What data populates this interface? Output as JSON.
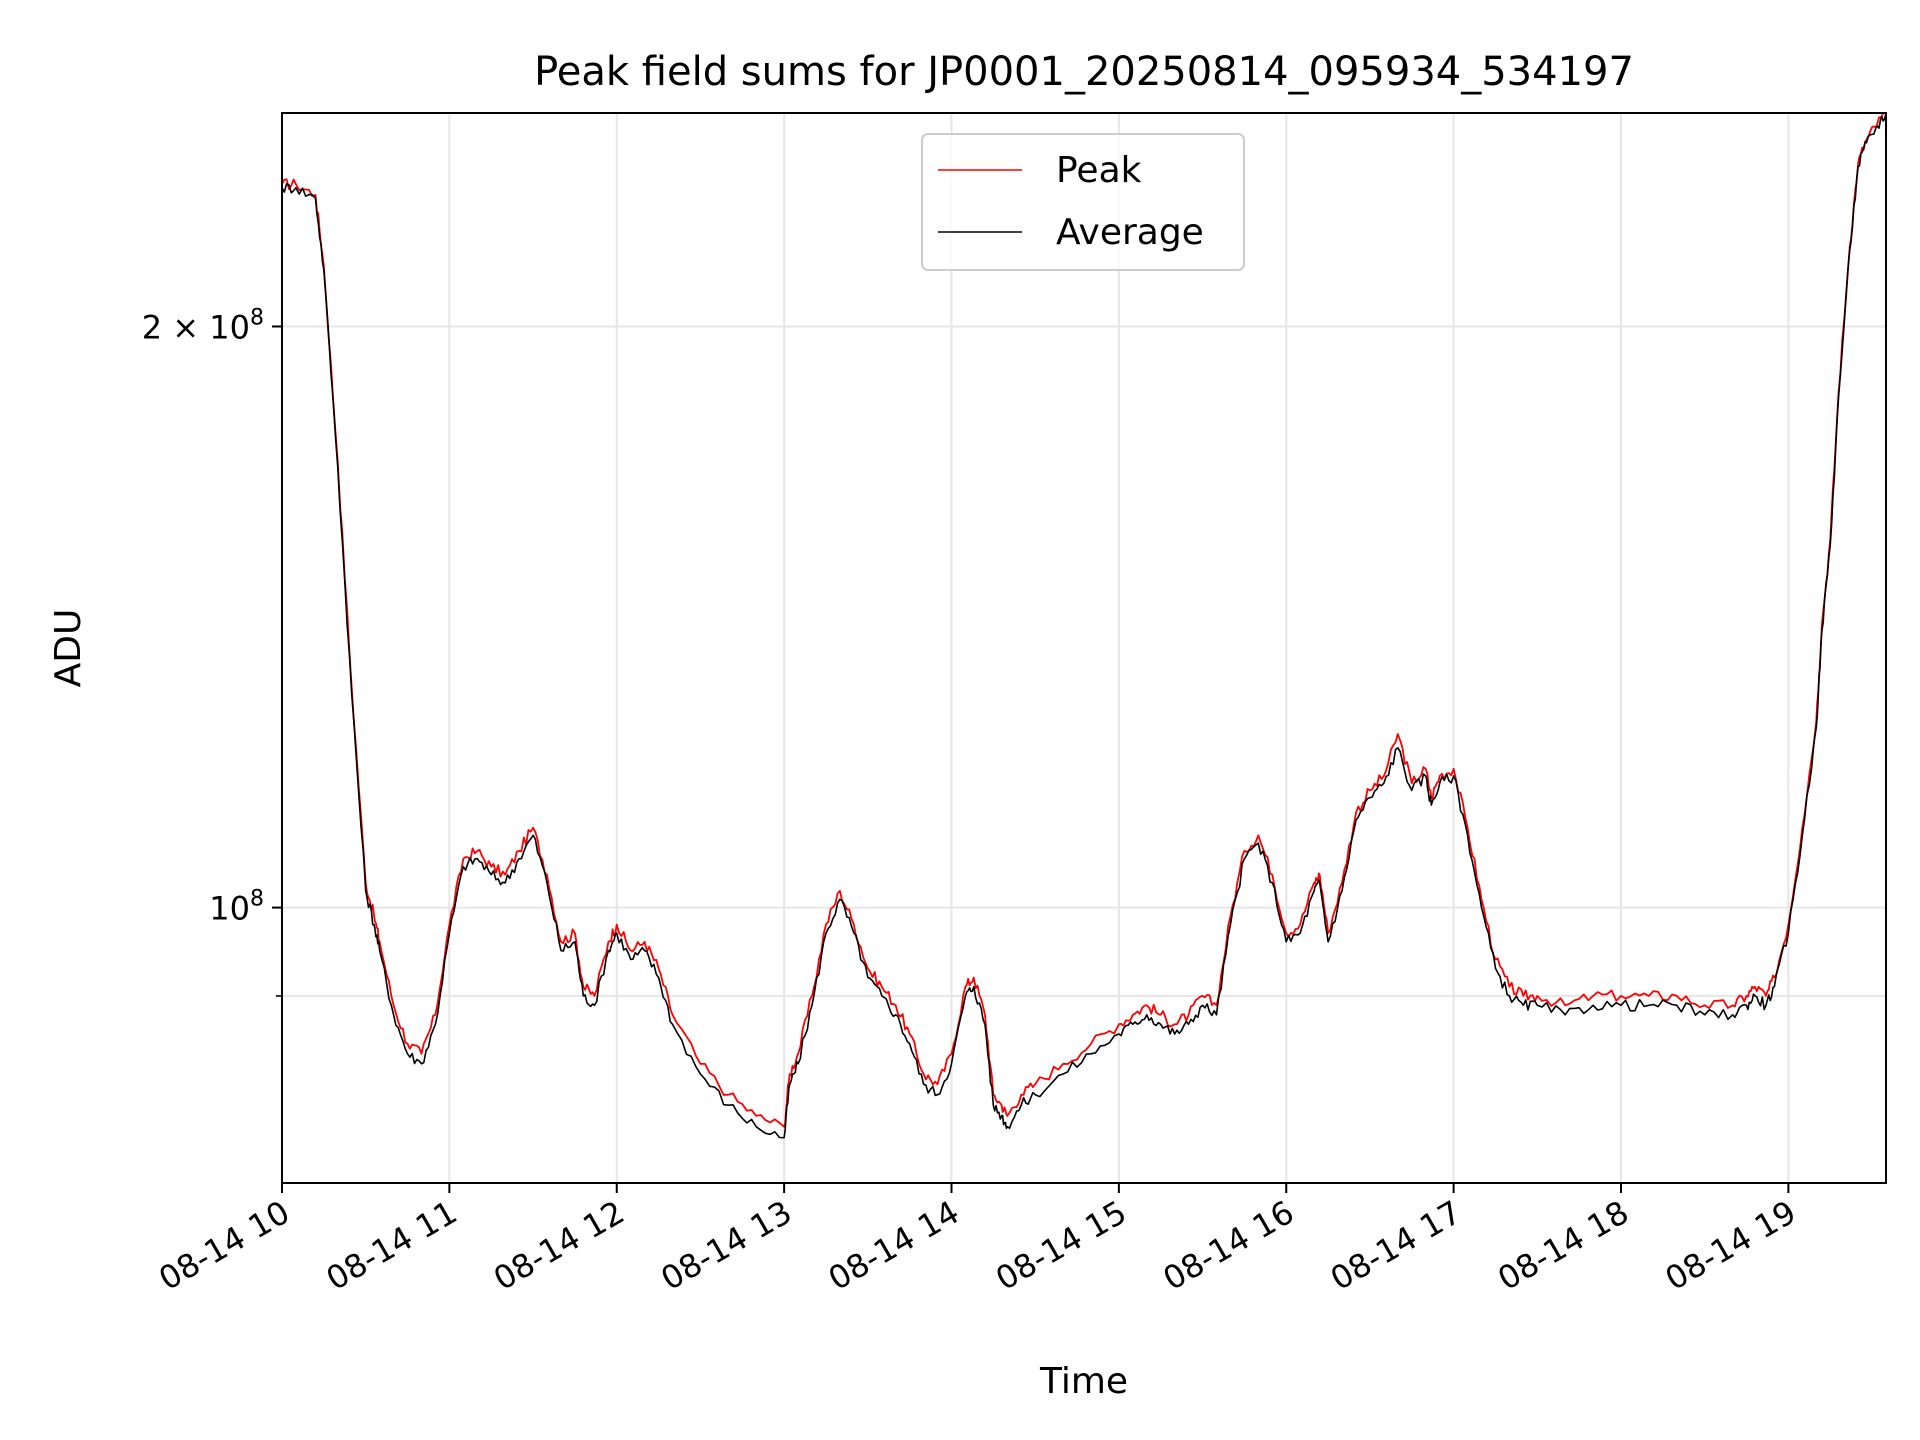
{
  "chart_data": {
    "type": "line",
    "title": "Peak field sums for JP0001_20250814_095934_534197",
    "xlabel": "Time",
    "ylabel": "ADU",
    "yscale": "log",
    "xlim": [
      "08-14 10:00",
      "08-14 19:35"
    ],
    "ylim": [
      72000000,
      258000000
    ],
    "grid": true,
    "legend_position": "upper center",
    "x_ticks": [
      "08-14 10",
      "08-14 11",
      "08-14 12",
      "08-14 13",
      "08-14 14",
      "08-14 15",
      "08-14 16",
      "08-14 17",
      "08-14 18",
      "08-14 19"
    ],
    "y_ticks_major": [
      {
        "value": 100000000,
        "base": "10",
        "exp": "8",
        "mantissa": ""
      },
      {
        "value": 200000000,
        "base": "10",
        "exp": "8",
        "mantissa": "2 × "
      }
    ],
    "y_ticks_minor_unlabeled": [
      90000000
    ],
    "x": [
      "10:00",
      "10:05",
      "10:12",
      "10:15",
      "10:20",
      "10:25",
      "10:30",
      "10:33",
      "10:35",
      "10:40",
      "10:45",
      "10:50",
      "10:55",
      "11:00",
      "11:05",
      "11:10",
      "11:15",
      "11:20",
      "11:25",
      "11:30",
      "11:35",
      "11:40",
      "11:45",
      "11:48",
      "11:52",
      "11:57",
      "12:00",
      "12:05",
      "12:10",
      "12:15",
      "12:20",
      "12:30",
      "12:40",
      "12:50",
      "13:00",
      "13:02",
      "13:05",
      "13:10",
      "13:15",
      "13:20",
      "13:25",
      "13:30",
      "13:35",
      "13:40",
      "13:45",
      "13:50",
      "13:55",
      "14:00",
      "14:05",
      "14:08",
      "14:12",
      "14:15",
      "14:18",
      "14:20",
      "14:25",
      "14:30",
      "14:40",
      "14:50",
      "15:00",
      "15:05",
      "15:10",
      "15:15",
      "15:20",
      "15:25",
      "15:30",
      "15:35",
      "15:40",
      "15:45",
      "15:50",
      "15:55",
      "16:00",
      "16:05",
      "16:10",
      "16:12",
      "16:15",
      "16:20",
      "16:25",
      "16:30",
      "16:35",
      "16:40",
      "16:45",
      "16:50",
      "16:52",
      "16:55",
      "17:00",
      "17:05",
      "17:10",
      "17:15",
      "17:20",
      "17:25",
      "17:30",
      "17:40",
      "17:50",
      "18:00",
      "18:10",
      "18:20",
      "18:30",
      "18:40",
      "18:45",
      "18:48",
      "18:52",
      "18:55",
      "19:00",
      "19:05",
      "19:10",
      "19:12",
      "19:15",
      "19:18",
      "19:22",
      "19:25",
      "19:28",
      "19:32",
      "19:35"
    ],
    "series": [
      {
        "name": "Peak",
        "color": "#ff0000",
        "values": [
          237000000,
          237000000,
          234000000,
          215000000,
          170000000,
          130000000,
          103000000,
          99000000,
          96000000,
          89000000,
          85000000,
          84000000,
          88000000,
          98000000,
          106000000,
          107000000,
          105000000,
          104000000,
          107000000,
          110000000,
          104000000,
          96000000,
          97000000,
          91000000,
          90000000,
          96000000,
          98000000,
          95000000,
          96000000,
          93000000,
          88000000,
          83000000,
          80000000,
          78000000,
          77000000,
          82000000,
          84000000,
          90000000,
          98000000,
          102000000,
          98000000,
          93000000,
          91000000,
          89000000,
          86000000,
          82000000,
          81000000,
          84000000,
          91000000,
          92000000,
          88000000,
          80000000,
          79000000,
          78000000,
          80000000,
          81000000,
          83000000,
          85000000,
          87000000,
          88000000,
          89000000,
          88000000,
          87000000,
          88000000,
          90000000,
          89000000,
          99000000,
          107000000,
          109000000,
          104000000,
          97000000,
          98000000,
          103000000,
          104000000,
          97000000,
          103000000,
          112000000,
          115000000,
          117000000,
          123000000,
          116000000,
          118000000,
          114000000,
          117000000,
          118000000,
          110000000,
          101000000,
          94000000,
          91000000,
          90000000,
          90000000,
          89000000,
          90000000,
          90000000,
          90000000,
          90000000,
          89000000,
          89000000,
          90000000,
          91000000,
          90000000,
          92000000,
          98000000,
          110000000,
          125000000,
          140000000,
          155000000,
          185000000,
          220000000,
          243000000,
          250000000,
          255000000,
          258000000
        ]
      },
      {
        "name": "Average",
        "color": "#000000",
        "values": [
          236000000,
          236000000,
          233000000,
          214000000,
          169000000,
          129000000,
          102000000,
          98000000,
          95000000,
          88000000,
          84000000,
          83000000,
          87000000,
          97000000,
          105000000,
          106000000,
          104000000,
          103000000,
          106000000,
          109000000,
          103000000,
          95000000,
          96000000,
          90000000,
          89000000,
          95000000,
          97000000,
          94000000,
          95000000,
          92000000,
          87000000,
          82000000,
          79000000,
          77000000,
          76000000,
          81000000,
          83000000,
          89000000,
          97000000,
          101000000,
          97000000,
          92000000,
          90000000,
          88000000,
          85000000,
          81000000,
          80000000,
          83000000,
          90000000,
          91000000,
          87000000,
          79000000,
          78000000,
          77000000,
          79000000,
          80000000,
          82000000,
          84000000,
          86000000,
          87000000,
          88000000,
          87000000,
          86000000,
          87000000,
          89000000,
          88000000,
          98000000,
          106000000,
          108000000,
          103000000,
          96000000,
          97000000,
          102000000,
          103000000,
          96000000,
          102000000,
          111000000,
          114000000,
          116000000,
          121000000,
          115000000,
          117000000,
          113000000,
          116000000,
          117000000,
          109000000,
          100000000,
          93000000,
          90000000,
          89000000,
          89000000,
          88000000,
          89000000,
          89000000,
          89000000,
          89000000,
          88000000,
          88000000,
          89000000,
          90000000,
          89000000,
          91000000,
          97000000,
          109000000,
          124000000,
          139000000,
          154000000,
          184000000,
          219000000,
          242000000,
          249000000,
          254000000,
          258000000
        ]
      }
    ]
  }
}
